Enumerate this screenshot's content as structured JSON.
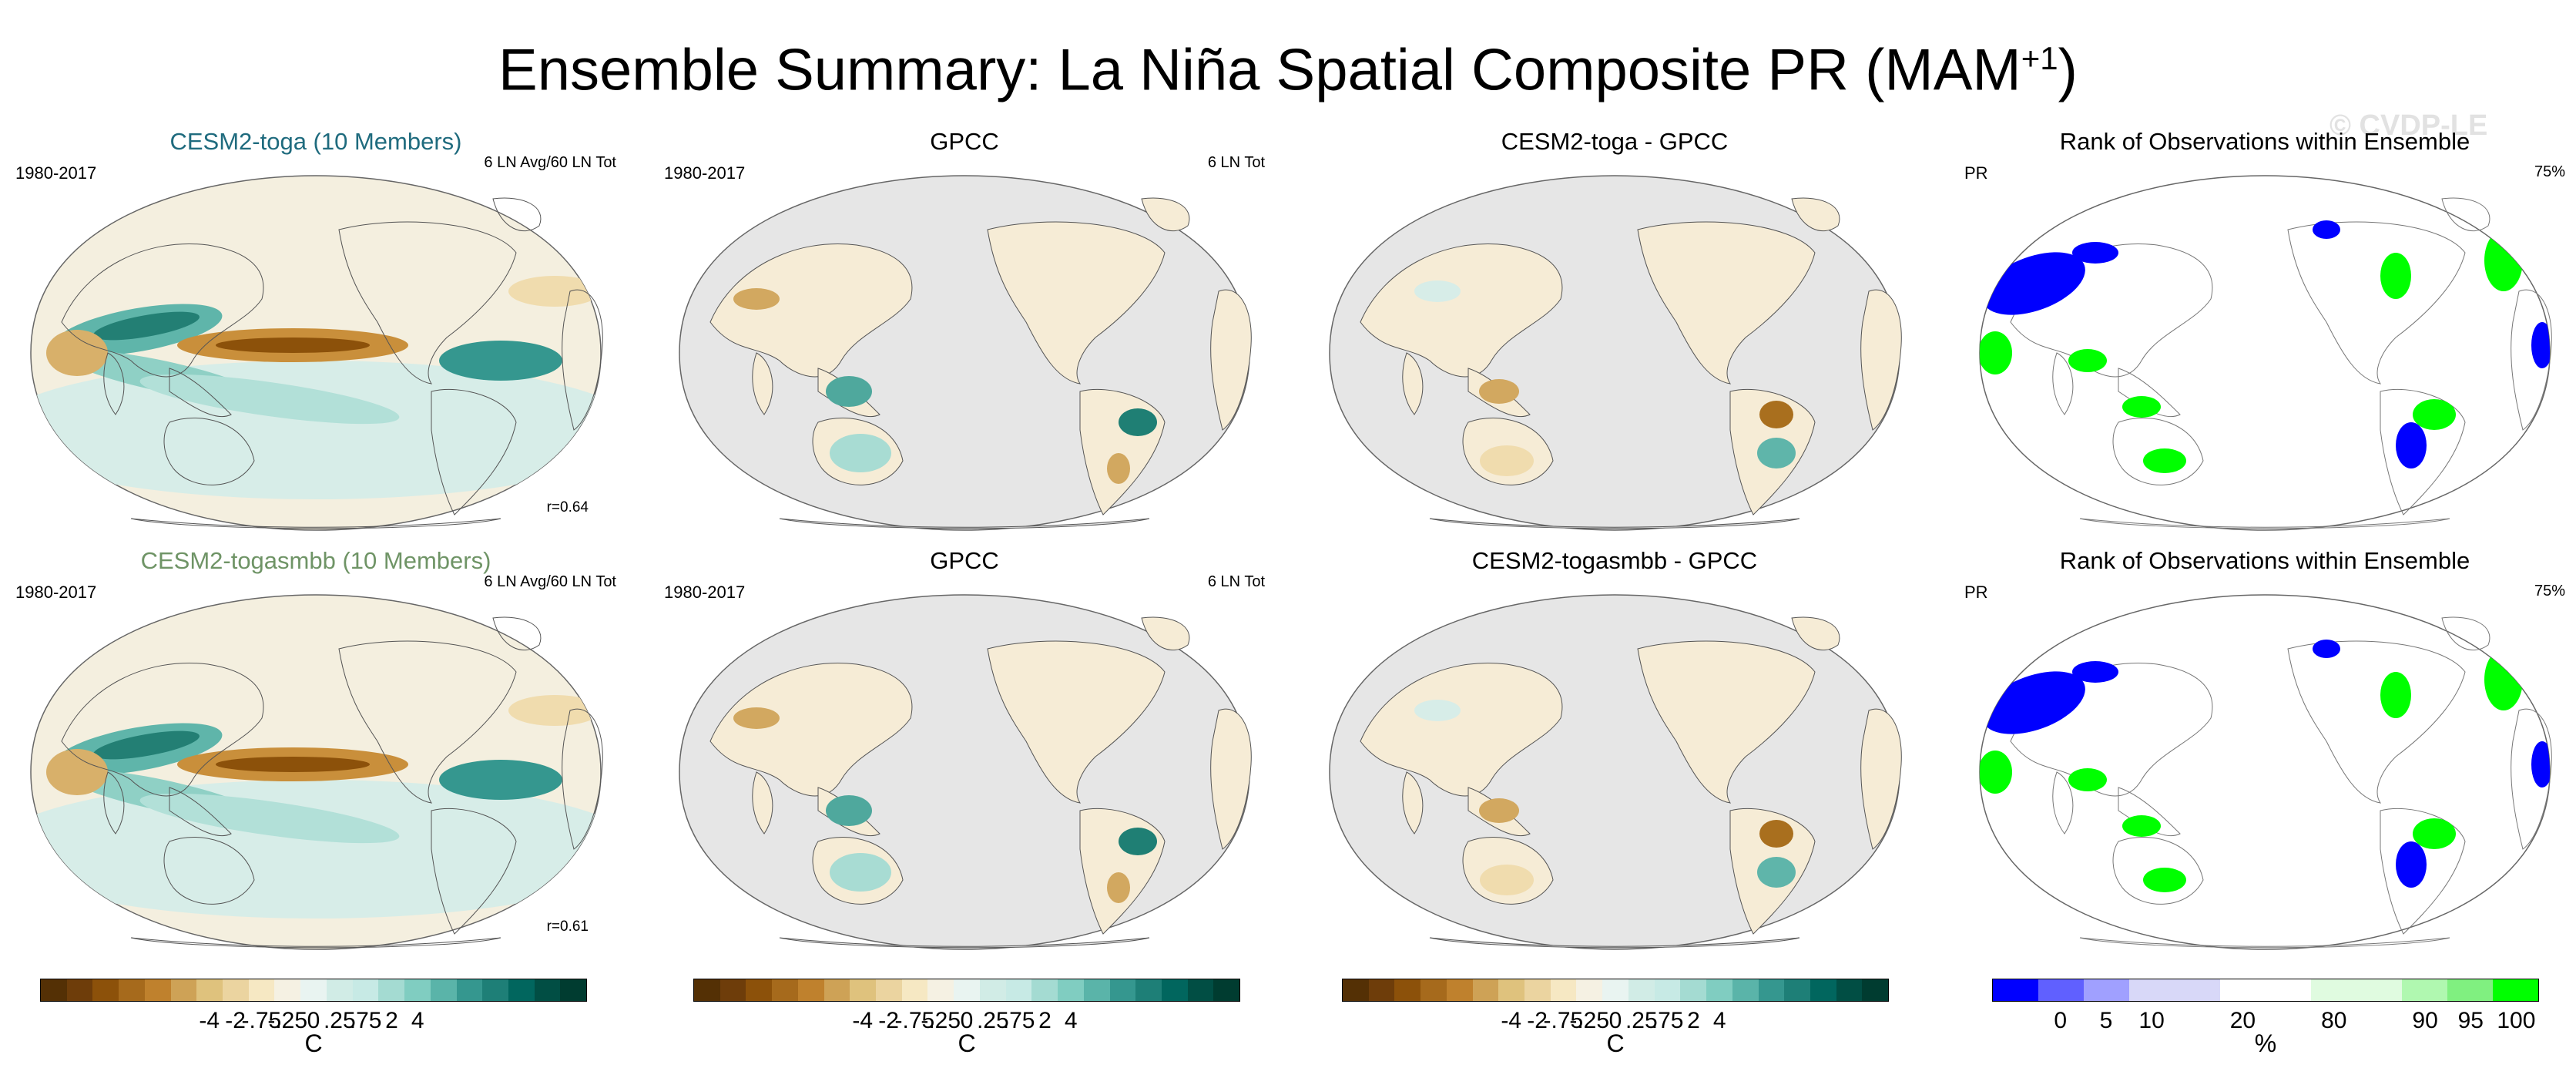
{
  "title": {
    "main": "Ensemble Summary: La Niña Spatial Composite PR (MAM",
    "sup": "+1",
    "close": ")"
  },
  "watermark": "© CVDP-LE",
  "rows": [
    {
      "model": {
        "title": "CESM2-toga (10 Members)",
        "title_color": "#1f6b7e",
        "years": "1980-2017",
        "info": "6 LN Avg/60 LN Tot",
        "r": "r=0.64"
      },
      "obs": {
        "title": "GPCC",
        "years": "1980-2017",
        "info": "6 LN Tot"
      },
      "diff": {
        "title": "CESM2-toga - GPCC"
      },
      "rank": {
        "title": "Rank of Observations within Ensemble",
        "var": "PR",
        "pct": "75%"
      }
    },
    {
      "model": {
        "title": "CESM2-togasmbb (10 Members)",
        "title_color": "#6f9466",
        "years": "1980-2017",
        "info": "6 LN Avg/60 LN Tot",
        "r": "r=0.61"
      },
      "obs": {
        "title": "GPCC",
        "years": "1980-2017",
        "info": "6 LN Tot"
      },
      "diff": {
        "title": "CESM2-togasmbb - GPCC"
      },
      "rank": {
        "title": "Rank of Observations within Ensemble",
        "var": "PR",
        "pct": "75%"
      }
    }
  ],
  "colorbars": {
    "diverging": {
      "colors": [
        "#543005",
        "#6e3d0a",
        "#8c510a",
        "#a66a1c",
        "#bf812d",
        "#cea256",
        "#dfc27d",
        "#ebd4a0",
        "#f6e8c3",
        "#f5f1e3",
        "#e9f4f1",
        "#d1ece6",
        "#c7eae5",
        "#a4dbd2",
        "#80cdc1",
        "#5ab4a9",
        "#35978f",
        "#1e7f77",
        "#01665e",
        "#014e44",
        "#003c30"
      ],
      "ticks": [
        "-4",
        "-2",
        "-.75",
        "-.25",
        "0",
        ".25",
        ".75",
        "2",
        "4"
      ],
      "unit": "C"
    },
    "rank": {
      "colors": [
        "#0000ff",
        "#6060ff",
        "#a0a0ff",
        "#d8d8f8",
        "#d8d8f8",
        "#ffffff",
        "#ffffff",
        "#e0fbe0",
        "#e0fbe0",
        "#b0f8b0",
        "#80f080",
        "#00ff00"
      ],
      "ticks": [
        "0",
        "5",
        "10",
        "20",
        "80",
        "90",
        "95",
        "100"
      ],
      "unit": "%"
    }
  }
}
